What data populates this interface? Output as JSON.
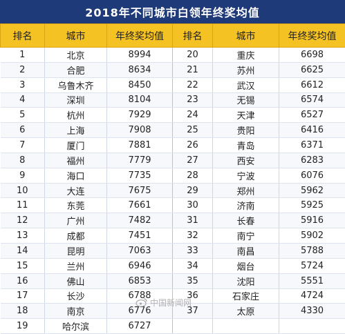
{
  "title": "2018年不同城市白领年终奖均值",
  "headers": {
    "rank": "排名",
    "city": "城市",
    "salary": "年终奖均值"
  },
  "rows": [
    {
      "left": {
        "rank": "1",
        "city": "北京",
        "value": "8994"
      },
      "right": {
        "rank": "20",
        "city": "重庆",
        "value": "6698"
      }
    },
    {
      "left": {
        "rank": "2",
        "city": "合肥",
        "value": "8634"
      },
      "right": {
        "rank": "21",
        "city": "苏州",
        "value": "6625"
      }
    },
    {
      "left": {
        "rank": "3",
        "city": "乌鲁木齐",
        "value": "8450"
      },
      "right": {
        "rank": "22",
        "city": "武汉",
        "value": "6612"
      }
    },
    {
      "left": {
        "rank": "4",
        "city": "深圳",
        "value": "8104"
      },
      "right": {
        "rank": "23",
        "city": "无锡",
        "value": "6574"
      }
    },
    {
      "left": {
        "rank": "5",
        "city": "杭州",
        "value": "7929"
      },
      "right": {
        "rank": "24",
        "city": "天津",
        "value": "6527"
      }
    },
    {
      "left": {
        "rank": "6",
        "city": "上海",
        "value": "7908"
      },
      "right": {
        "rank": "25",
        "city": "贵阳",
        "value": "6416"
      }
    },
    {
      "left": {
        "rank": "7",
        "city": "厦门",
        "value": "7881"
      },
      "right": {
        "rank": "26",
        "city": "青岛",
        "value": "6371"
      }
    },
    {
      "left": {
        "rank": "8",
        "city": "福州",
        "value": "7779"
      },
      "right": {
        "rank": "27",
        "city": "西安",
        "value": "6283"
      }
    },
    {
      "left": {
        "rank": "9",
        "city": "海口",
        "value": "7735"
      },
      "right": {
        "rank": "28",
        "city": "宁波",
        "value": "6076"
      }
    },
    {
      "left": {
        "rank": "10",
        "city": "大连",
        "value": "7675"
      },
      "right": {
        "rank": "29",
        "city": "郑州",
        "value": "5962"
      }
    },
    {
      "left": {
        "rank": "11",
        "city": "东莞",
        "value": "7661"
      },
      "right": {
        "rank": "30",
        "city": "济南",
        "value": "5925"
      }
    },
    {
      "left": {
        "rank": "12",
        "city": "广州",
        "value": "7482"
      },
      "right": {
        "rank": "31",
        "city": "长春",
        "value": "5916"
      }
    },
    {
      "left": {
        "rank": "13",
        "city": "成都",
        "value": "7451"
      },
      "right": {
        "rank": "32",
        "city": "南宁",
        "value": "5902"
      }
    },
    {
      "left": {
        "rank": "14",
        "city": "昆明",
        "value": "7063"
      },
      "right": {
        "rank": "33",
        "city": "南昌",
        "value": "5788"
      }
    },
    {
      "left": {
        "rank": "15",
        "city": "兰州",
        "value": "6946"
      },
      "right": {
        "rank": "34",
        "city": "烟台",
        "value": "5724"
      }
    },
    {
      "left": {
        "rank": "16",
        "city": "佛山",
        "value": "6853"
      },
      "right": {
        "rank": "35",
        "city": "沈阳",
        "value": "5551"
      }
    },
    {
      "left": {
        "rank": "17",
        "city": "长沙",
        "value": "6788"
      },
      "right": {
        "rank": "36",
        "city": "石家庄",
        "value": "4724"
      }
    },
    {
      "left": {
        "rank": "18",
        "city": "南京",
        "value": "6776"
      },
      "right": {
        "rank": "37",
        "city": "太原",
        "value": "4330"
      }
    },
    {
      "left": {
        "rank": "19",
        "city": "哈尔滨",
        "value": "6727"
      },
      "right": {
        "rank": "",
        "city": "",
        "value": ""
      }
    }
  ],
  "watermark": {
    "text": "中国新闻网",
    "icon": "weibo-icon"
  }
}
